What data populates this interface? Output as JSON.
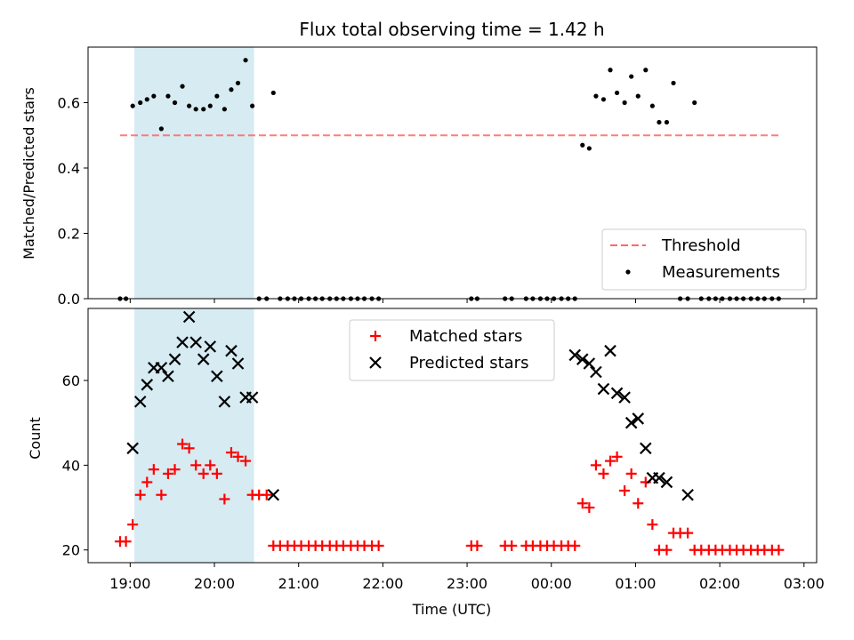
{
  "chart_data": [
    {
      "type": "scatter",
      "title": "Flux total observing time = 1.42 h",
      "ylabel": "Matched/Predicted stars",
      "xlabel": "",
      "ylim": [
        0,
        0.77
      ],
      "yticks": [
        "0.0",
        "0.2",
        "0.4",
        "0.6"
      ],
      "yticks_values": [
        0,
        0.2,
        0.4,
        0.6
      ],
      "threshold": 0.5,
      "shaded_region_hours": [
        19.05,
        20.47
      ],
      "legend": {
        "placement": "lower-right",
        "entries": [
          "Threshold",
          "Measurements"
        ]
      },
      "series": [
        {
          "name": "Measurements",
          "x": [
            18.88,
            18.95,
            19.03,
            19.12,
            19.2,
            19.28,
            19.37,
            19.45,
            19.53,
            19.62,
            19.7,
            19.78,
            19.87,
            19.95,
            20.03,
            20.12,
            20.2,
            20.28,
            20.37,
            20.45,
            20.53,
            20.62,
            20.7,
            20.78,
            20.87,
            20.95,
            21.03,
            21.12,
            21.2,
            21.28,
            21.37,
            21.45,
            21.53,
            21.62,
            21.7,
            21.78,
            21.87,
            21.95,
            23.05,
            23.12,
            23.45,
            23.53,
            23.7,
            23.78,
            23.87,
            23.95,
            24.03,
            24.12,
            24.2,
            24.28,
            24.37,
            24.45,
            24.53,
            24.62,
            24.7,
            24.78,
            24.87,
            24.95,
            25.03,
            25.12,
            25.2,
            25.28,
            25.37,
            25.45,
            25.53,
            25.62,
            25.7,
            25.78,
            25.87,
            25.95,
            26.03,
            26.12,
            26.2,
            26.28,
            26.37,
            26.45,
            26.53,
            26.62,
            26.7
          ],
          "y": [
            0.0,
            0.0,
            0.59,
            0.6,
            0.61,
            0.62,
            0.52,
            0.62,
            0.6,
            0.65,
            0.59,
            0.58,
            0.58,
            0.59,
            0.62,
            0.58,
            0.64,
            0.66,
            0.73,
            0.59,
            0.0,
            0.0,
            0.63,
            0.0,
            0.0,
            0.0,
            0.0,
            0.0,
            0.0,
            0.0,
            0.0,
            0.0,
            0.0,
            0.0,
            0.0,
            0.0,
            0.0,
            0.0,
            0.0,
            0.0,
            0.0,
            0.0,
            0.0,
            0.0,
            0.0,
            0.0,
            0.0,
            0.0,
            0.0,
            0.0,
            0.47,
            0.46,
            0.62,
            0.61,
            0.7,
            0.63,
            0.6,
            0.68,
            0.62,
            0.7,
            0.59,
            0.54,
            0.54,
            0.66,
            0.0,
            0.0,
            0.6,
            0.0,
            0.0,
            0.0,
            0.0,
            0.0,
            0.0,
            0.0,
            0.0,
            0.0,
            0.0,
            0.0,
            0.0
          ],
          "color": "#000000"
        }
      ]
    },
    {
      "type": "scatter",
      "title": "",
      "ylabel": "Count",
      "xlabel": "Time (UTC)",
      "ylim": [
        17,
        77
      ],
      "yticks": [
        "20",
        "40",
        "60"
      ],
      "yticks_values": [
        20,
        40,
        60
      ],
      "xlim_hours": [
        18.5,
        27.15
      ],
      "xticks": [
        "19:00",
        "20:00",
        "21:00",
        "22:00",
        "23:00",
        "00:00",
        "01:00",
        "02:00",
        "03:00"
      ],
      "xticks_values_hours": [
        19,
        20,
        21,
        22,
        23,
        24,
        25,
        26,
        27
      ],
      "shaded_region_hours": [
        19.05,
        20.47
      ],
      "legend": {
        "placement": "upper-center",
        "entries": [
          "Matched stars",
          "Predicted stars"
        ]
      },
      "series": [
        {
          "name": "Matched stars",
          "marker": "+",
          "color": "#ff0000",
          "x": [
            18.88,
            18.95,
            19.03,
            19.12,
            19.2,
            19.28,
            19.37,
            19.45,
            19.53,
            19.62,
            19.7,
            19.78,
            19.87,
            19.95,
            20.03,
            20.12,
            20.2,
            20.28,
            20.37,
            20.45,
            20.53,
            20.62,
            20.7,
            20.78,
            20.87,
            20.95,
            21.03,
            21.12,
            21.2,
            21.28,
            21.37,
            21.45,
            21.53,
            21.62,
            21.7,
            21.78,
            21.87,
            21.95,
            23.05,
            23.12,
            23.45,
            23.53,
            23.7,
            23.78,
            23.87,
            23.95,
            24.03,
            24.12,
            24.2,
            24.28,
            24.37,
            24.45,
            24.53,
            24.62,
            24.7,
            24.78,
            24.87,
            24.95,
            25.03,
            25.12,
            25.2,
            25.28,
            25.37,
            25.45,
            25.53,
            25.62,
            25.7,
            25.78,
            25.87,
            25.95,
            26.03,
            26.12,
            26.2,
            26.28,
            26.37,
            26.45,
            26.53,
            26.62,
            26.7
          ],
          "y": [
            22,
            22,
            26,
            33,
            36,
            39,
            33,
            38,
            39,
            45,
            44,
            40,
            38,
            40,
            38,
            32,
            43,
            42,
            41,
            33,
            33,
            33,
            21,
            21,
            21,
            21,
            21,
            21,
            21,
            21,
            21,
            21,
            21,
            21,
            21,
            21,
            21,
            21,
            21,
            21,
            21,
            21,
            21,
            21,
            21,
            21,
            21,
            21,
            21,
            21,
            31,
            30,
            40,
            38,
            41,
            42,
            34,
            38,
            31,
            36,
            26,
            20,
            20,
            24,
            24,
            24,
            20,
            20,
            20,
            20,
            20,
            20,
            20,
            20,
            20,
            20,
            20,
            20,
            20
          ]
        },
        {
          "name": "Predicted stars",
          "marker": "x",
          "color": "#000000",
          "x": [
            19.03,
            19.12,
            19.2,
            19.28,
            19.37,
            19.45,
            19.53,
            19.62,
            19.7,
            19.78,
            19.87,
            19.95,
            20.03,
            20.12,
            20.2,
            20.28,
            20.37,
            20.45,
            20.7,
            24.28,
            24.37,
            24.45,
            24.53,
            24.62,
            24.7,
            24.78,
            24.87,
            24.95,
            25.03,
            25.12,
            25.2,
            25.28,
            25.37,
            25.62
          ],
          "y": [
            44,
            55,
            59,
            63,
            63,
            61,
            65,
            69,
            75,
            69,
            65,
            68,
            61,
            55,
            67,
            64,
            56,
            56,
            33,
            66,
            65,
            64,
            62,
            58,
            67,
            57,
            56,
            50,
            51,
            44,
            37,
            37,
            36,
            33
          ]
        }
      ]
    }
  ]
}
